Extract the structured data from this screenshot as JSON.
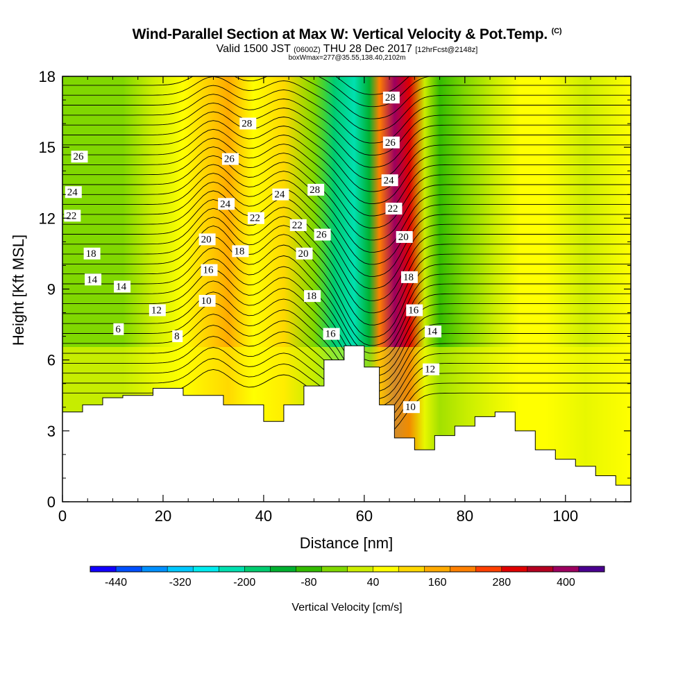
{
  "chart_data": {
    "type": "heatmap",
    "title": "Wind-Parallel Section at Max W: Vertical Velocity & Pot.Temp.",
    "title_mark": "(C)",
    "subtitle_parts": [
      "Valid 1500 JST",
      "(0600Z)",
      "THU 28 Dec 2017",
      "[12hrFcst@2148z]"
    ],
    "subtitle2": "boxWmax=277@35.55,138.40,2102m",
    "xlabel": "Distance [nm]",
    "ylabel": "Height [Kft MSL]",
    "xlim": [
      0,
      113
    ],
    "ylim": [
      0,
      18
    ],
    "x_ticks": [
      0,
      20,
      40,
      60,
      80,
      100
    ],
    "y_ticks": [
      0,
      3,
      6,
      9,
      12,
      15,
      18
    ],
    "colorbar": {
      "label": "Vertical Velocity [cm/s]",
      "tick_labels": [
        "-440",
        "-320",
        "-200",
        "-80",
        "40",
        "160",
        "280",
        "400"
      ],
      "colors": [
        "#1200ff",
        "#0050ff",
        "#0090ff",
        "#00c8ff",
        "#00ecf0",
        "#00e0b0",
        "#00cc70",
        "#00b030",
        "#33bb00",
        "#80d800",
        "#ccee00",
        "#ffff00",
        "#ffd800",
        "#ffaa00",
        "#ff8000",
        "#ff4000",
        "#e00000",
        "#b40020",
        "#9c0060",
        "#4a0090"
      ]
    },
    "vertical_velocity_cm_s": {
      "x_nm": [
        0,
        6,
        12,
        18,
        24,
        28,
        33,
        38,
        44,
        50,
        54,
        58,
        61,
        63,
        66,
        69,
        72,
        75,
        80,
        86,
        91,
        96,
        104,
        113
      ],
      "values": [
        -40,
        -60,
        -40,
        10,
        40,
        120,
        140,
        50,
        90,
        -60,
        -180,
        -260,
        -120,
        200,
        380,
        280,
        -20,
        -100,
        -60,
        20,
        40,
        60,
        20,
        40
      ]
    },
    "theta_contour_labels": [
      {
        "text": "28",
        "x": 35.5,
        "y": 15.9
      },
      {
        "text": "28",
        "x": 64,
        "y": 17.0
      },
      {
        "text": "28",
        "x": 49,
        "y": 13.1
      },
      {
        "text": "26",
        "x": 2,
        "y": 14.5
      },
      {
        "text": "26",
        "x": 32,
        "y": 14.4
      },
      {
        "text": "26",
        "x": 64,
        "y": 15.1
      },
      {
        "text": "26",
        "x": 50.3,
        "y": 11.2
      },
      {
        "text": "24",
        "x": 0.8,
        "y": 13.0
      },
      {
        "text": "24",
        "x": 31.2,
        "y": 12.5
      },
      {
        "text": "24",
        "x": 42,
        "y": 12.9
      },
      {
        "text": "24",
        "x": 63.7,
        "y": 13.5
      },
      {
        "text": "22",
        "x": 0.6,
        "y": 12.0
      },
      {
        "text": "22",
        "x": 37.1,
        "y": 11.9
      },
      {
        "text": "22",
        "x": 45.5,
        "y": 11.6
      },
      {
        "text": "22",
        "x": 64.5,
        "y": 12.3
      },
      {
        "text": "20",
        "x": 27.4,
        "y": 11.0
      },
      {
        "text": "20",
        "x": 46.7,
        "y": 10.4
      },
      {
        "text": "20",
        "x": 66.6,
        "y": 11.1
      },
      {
        "text": "18",
        "x": 4.5,
        "y": 10.4
      },
      {
        "text": "18",
        "x": 34,
        "y": 10.5
      },
      {
        "text": "18",
        "x": 48.3,
        "y": 8.6
      },
      {
        "text": "18",
        "x": 67.6,
        "y": 9.4
      },
      {
        "text": "16",
        "x": 27.8,
        "y": 9.7
      },
      {
        "text": "16",
        "x": 52.1,
        "y": 7.0
      },
      {
        "text": "16",
        "x": 68.6,
        "y": 8.0
      },
      {
        "text": "14",
        "x": 4.7,
        "y": 9.3
      },
      {
        "text": "14",
        "x": 10.5,
        "y": 9.0
      },
      {
        "text": "14",
        "x": 72.3,
        "y": 7.1
      },
      {
        "text": "12",
        "x": 17.5,
        "y": 8.0
      },
      {
        "text": "12",
        "x": 71.9,
        "y": 5.5
      },
      {
        "text": "10",
        "x": 27.4,
        "y": 8.4
      },
      {
        "text": "10",
        "x": 68,
        "y": 3.9
      },
      {
        "text": "8",
        "x": 22.1,
        "y": 6.9
      },
      {
        "text": "6",
        "x": 10.4,
        "y": 7.2
      }
    ],
    "terrain_height_kft": {
      "x_nm": [
        0,
        4,
        8,
        12,
        18,
        24,
        32,
        40,
        44,
        48,
        52,
        56,
        60,
        63,
        66,
        70,
        74,
        78,
        82,
        86,
        90,
        94,
        98,
        102,
        106,
        110,
        113
      ],
      "y": [
        3.8,
        4.1,
        4.4,
        4.5,
        4.8,
        4.5,
        4.1,
        3.4,
        4.1,
        4.9,
        6.0,
        6.6,
        5.7,
        4.1,
        2.7,
        2.2,
        2.8,
        3.2,
        3.6,
        3.8,
        3.0,
        2.2,
        1.8,
        1.5,
        1.1,
        0.7,
        0.3
      ]
    },
    "grid": false
  }
}
